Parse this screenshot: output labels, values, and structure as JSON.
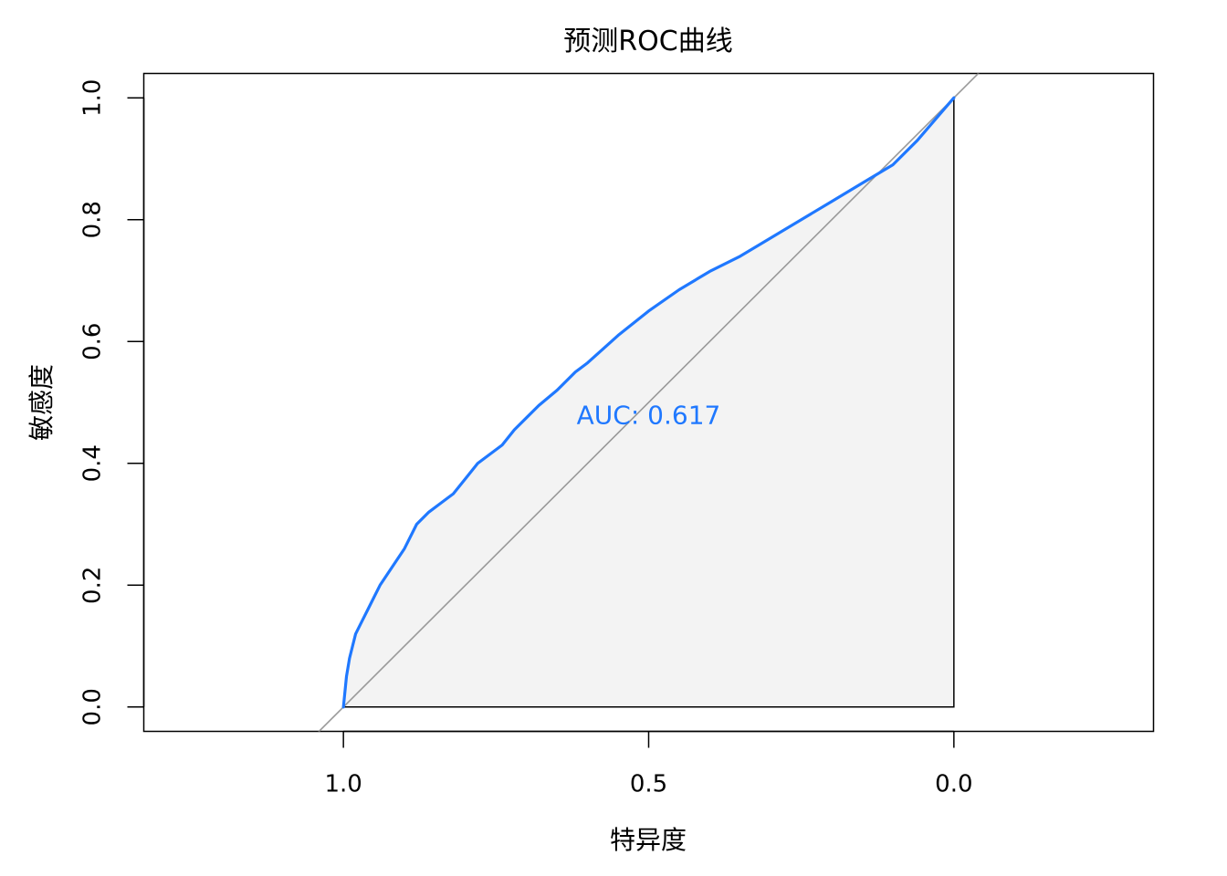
{
  "chart_data": {
    "type": "line",
    "title": "预测ROC曲线",
    "xlabel": "特异度",
    "ylabel": "敏感度",
    "x_reversed": true,
    "xlim": [
      1.327,
      -0.327
    ],
    "ylim": [
      -0.04,
      1.04
    ],
    "x_ticks": [
      1.0,
      0.5,
      0.0
    ],
    "x_tick_labels": [
      "1.0",
      "0.5",
      "0.0"
    ],
    "y_ticks": [
      0.0,
      0.2,
      0.4,
      0.6,
      0.8,
      1.0
    ],
    "y_tick_labels": [
      "0.0",
      "0.2",
      "0.4",
      "0.6",
      "0.8",
      "1.0"
    ],
    "grid": false,
    "legend": "none",
    "auc_label": "AUC: 0.617",
    "auc_label_position": {
      "x": 0.5,
      "y": 0.48
    },
    "series": [
      {
        "color": "#1f78ff",
        "specificity": [
          1.0,
          0.995,
          0.99,
          0.985,
          0.98,
          0.97,
          0.96,
          0.95,
          0.94,
          0.93,
          0.92,
          0.9,
          0.88,
          0.86,
          0.84,
          0.82,
          0.8,
          0.78,
          0.76,
          0.74,
          0.72,
          0.7,
          0.68,
          0.65,
          0.62,
          0.6,
          0.55,
          0.5,
          0.45,
          0.4,
          0.35,
          0.3,
          0.25,
          0.2,
          0.15,
          0.1,
          0.06,
          0.03,
          0.0
        ],
        "sensitivity": [
          0.0,
          0.05,
          0.08,
          0.1,
          0.12,
          0.14,
          0.16,
          0.18,
          0.2,
          0.215,
          0.23,
          0.26,
          0.3,
          0.32,
          0.335,
          0.35,
          0.375,
          0.4,
          0.415,
          0.43,
          0.455,
          0.475,
          0.495,
          0.52,
          0.55,
          0.565,
          0.61,
          0.65,
          0.685,
          0.715,
          0.74,
          0.77,
          0.8,
          0.83,
          0.86,
          0.89,
          0.93,
          0.965,
          1.0
        ]
      }
    ],
    "reference_line": {
      "from": [
        1.0,
        0.0
      ],
      "to": [
        0.0,
        1.0
      ],
      "color": "#999999"
    },
    "area_fill_color": "#f3f3f3"
  }
}
